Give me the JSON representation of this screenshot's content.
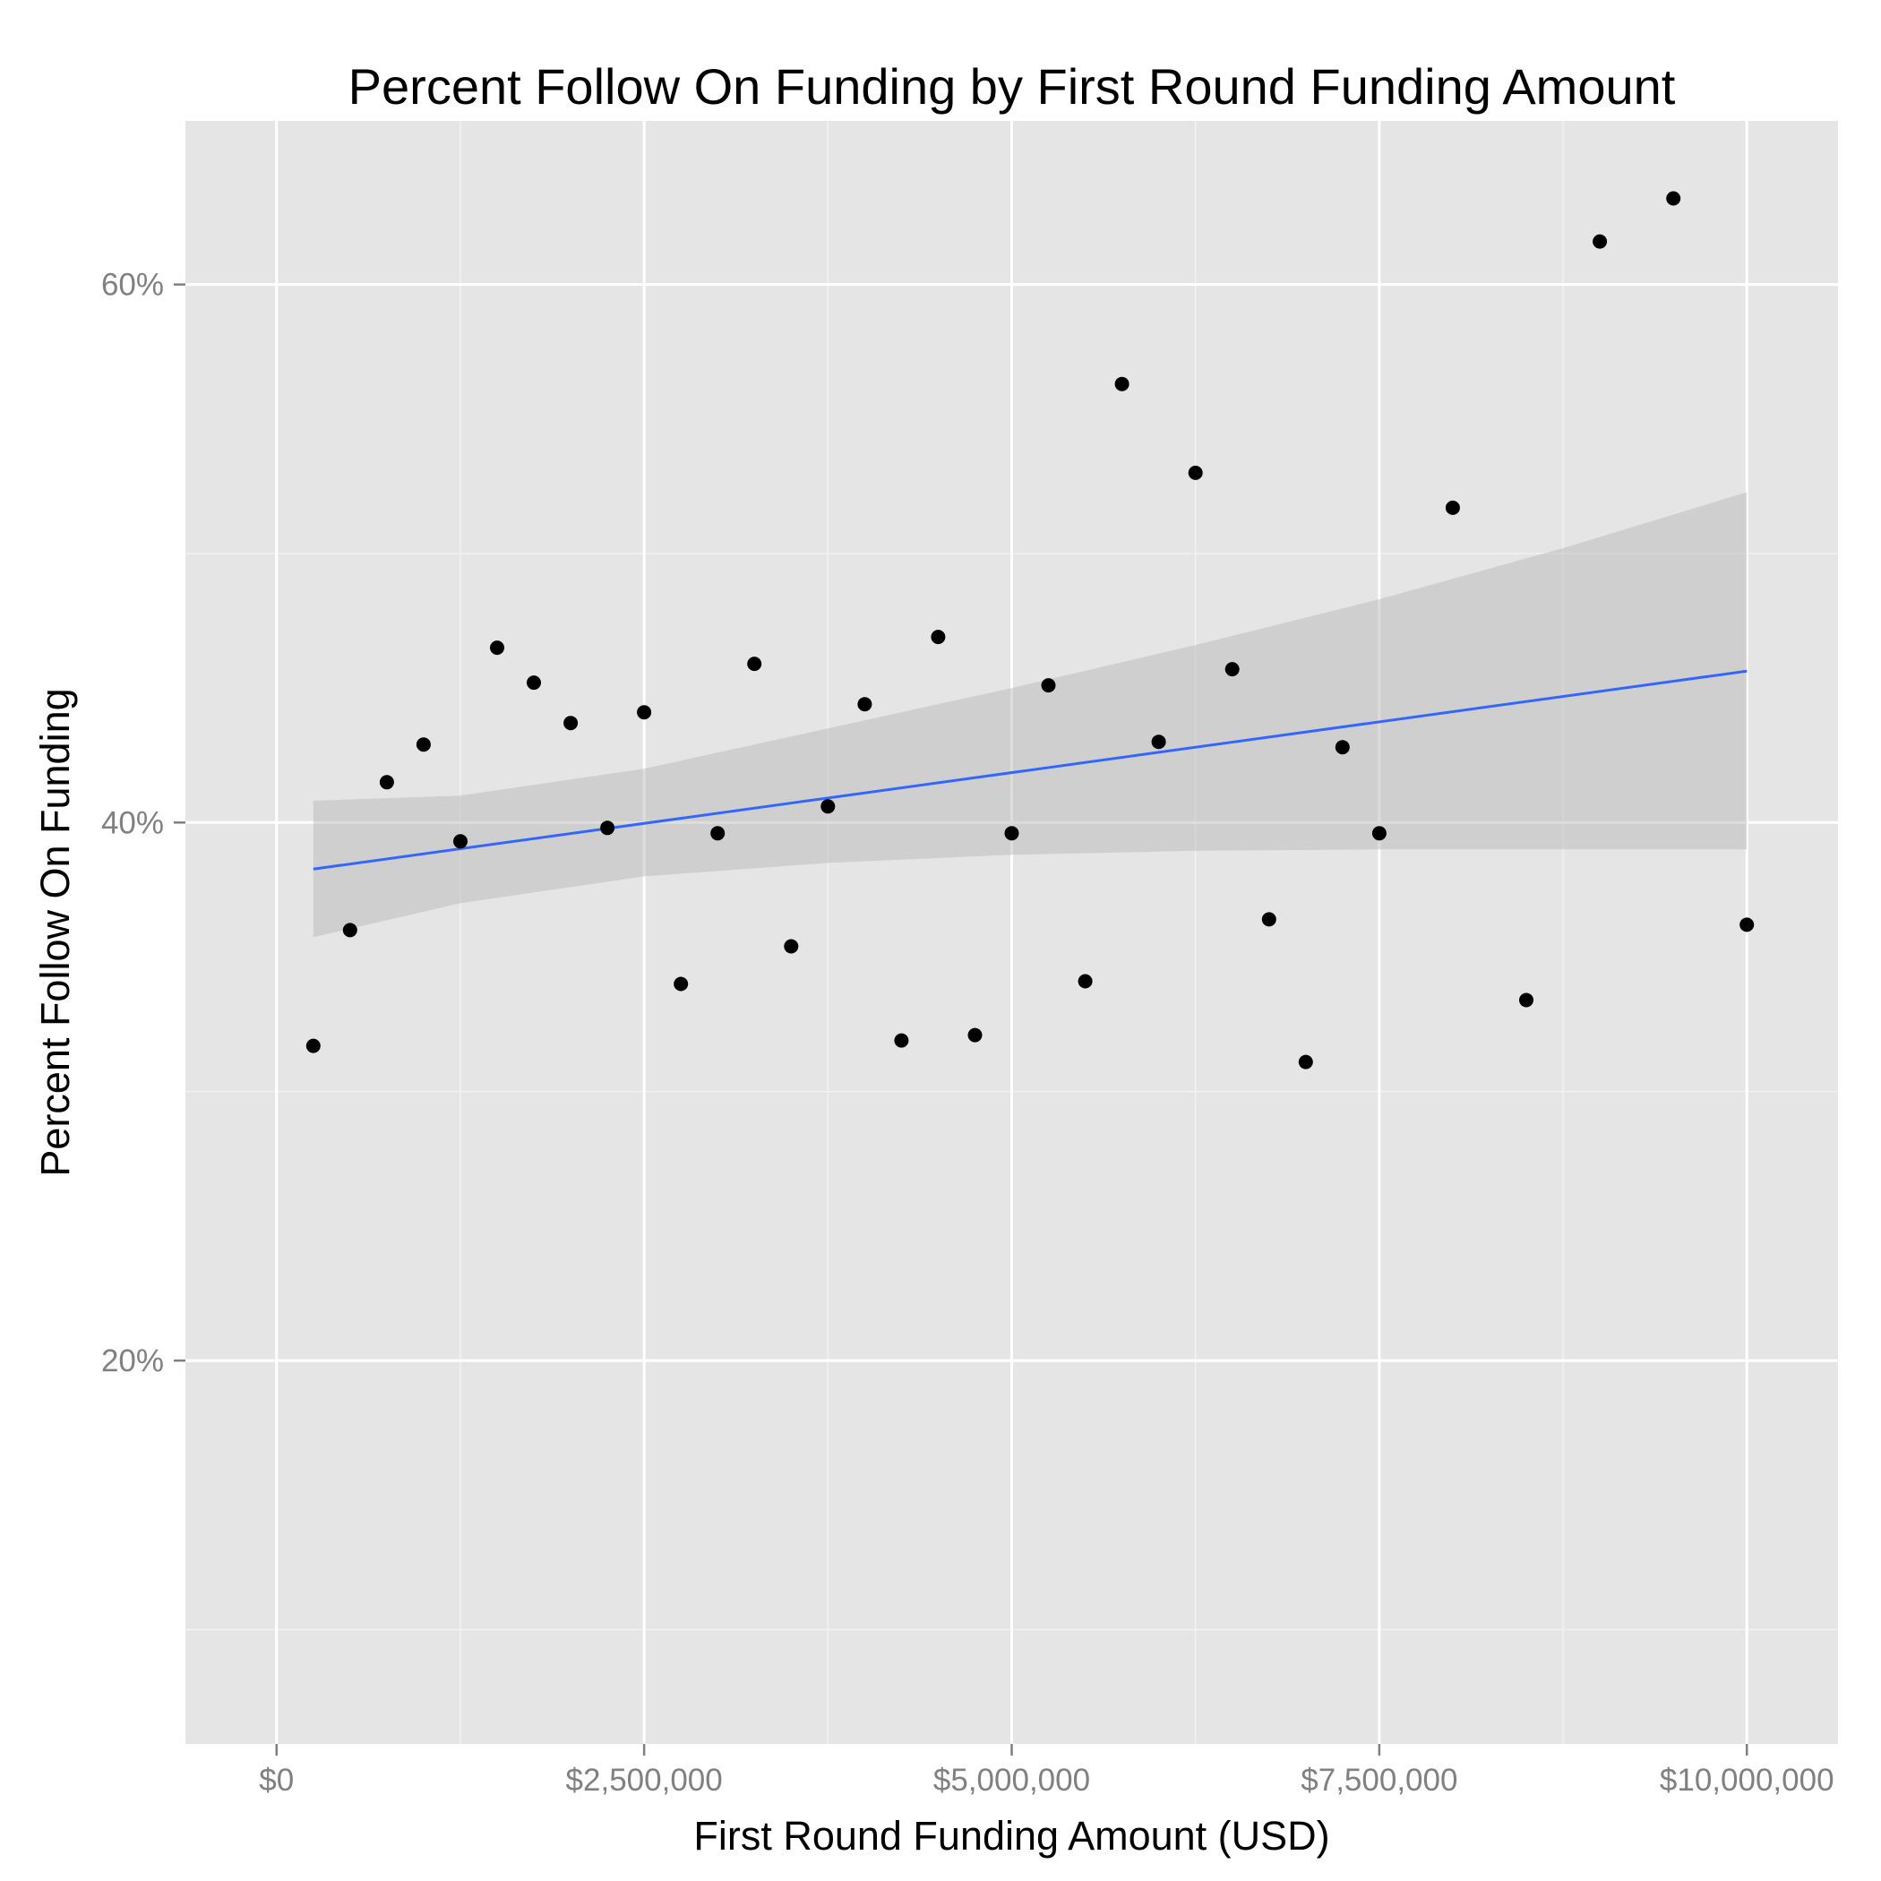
{
  "chart_data": {
    "type": "scatter",
    "title": "Percent Follow On Funding by First Round Funding Amount",
    "xlabel": "First Round Funding Amount (USD)",
    "ylabel": "Percent Follow On Funding",
    "xlim": [
      -620000,
      10620000
    ],
    "ylim": [
      0.0575,
      0.6608
    ],
    "x_ticks": [
      {
        "value": 0,
        "label": "$0"
      },
      {
        "value": 2500000,
        "label": "$2,500,000"
      },
      {
        "value": 5000000,
        "label": "$5,000,000"
      },
      {
        "value": 7500000,
        "label": "$7,500,000"
      },
      {
        "value": 10000000,
        "label": "$10,000,000"
      }
    ],
    "x_minor_ticks": [
      1250000,
      3750000,
      6250000,
      8750000
    ],
    "y_ticks": [
      {
        "value": 0.2,
        "label": "20%"
      },
      {
        "value": 0.4,
        "label": "40%"
      },
      {
        "value": 0.6,
        "label": "60%"
      }
    ],
    "y_minor_ticks": [
      0.1,
      0.3,
      0.5
    ],
    "grid": true,
    "colors": {
      "panel_background": "#e5e5e5",
      "grid_major": "#ffffff",
      "grid_minor": "#f2f2f2",
      "points": "#000000",
      "fit_line": "#3366ff",
      "confidence_band": "#b3b3b3"
    },
    "series": [
      {
        "values": [
          {
            "x": 250000,
            "y": 0.317
          },
          {
            "x": 500000,
            "y": 0.36
          },
          {
            "x": 750000,
            "y": 0.415
          },
          {
            "x": 1000000,
            "y": 0.429
          },
          {
            "x": 1250000,
            "y": 0.393
          },
          {
            "x": 1500000,
            "y": 0.465
          },
          {
            "x": 1750000,
            "y": 0.452
          },
          {
            "x": 2000000,
            "y": 0.437
          },
          {
            "x": 2250000,
            "y": 0.398
          },
          {
            "x": 2500000,
            "y": 0.441
          },
          {
            "x": 2750000,
            "y": 0.34
          },
          {
            "x": 3000000,
            "y": 0.396
          },
          {
            "x": 3250000,
            "y": 0.459
          },
          {
            "x": 3500000,
            "y": 0.354
          },
          {
            "x": 3750000,
            "y": 0.406
          },
          {
            "x": 4000000,
            "y": 0.444
          },
          {
            "x": 4250000,
            "y": 0.319
          },
          {
            "x": 4500000,
            "y": 0.469
          },
          {
            "x": 4750000,
            "y": 0.321
          },
          {
            "x": 5000000,
            "y": 0.396
          },
          {
            "x": 5250000,
            "y": 0.451
          },
          {
            "x": 5500000,
            "y": 0.341
          },
          {
            "x": 5750000,
            "y": 0.563
          },
          {
            "x": 6000000,
            "y": 0.43
          },
          {
            "x": 6250000,
            "y": 0.53
          },
          {
            "x": 6500000,
            "y": 0.457
          },
          {
            "x": 6750000,
            "y": 0.364
          },
          {
            "x": 7000000,
            "y": 0.311
          },
          {
            "x": 7250000,
            "y": 0.428
          },
          {
            "x": 7500000,
            "y": 0.396
          },
          {
            "x": 8000000,
            "y": 0.517
          },
          {
            "x": 8500000,
            "y": 0.334
          },
          {
            "x": 9000000,
            "y": 0.616
          },
          {
            "x": 9500000,
            "y": 0.632
          },
          {
            "x": 10000000,
            "y": 0.362
          }
        ]
      }
    ],
    "fit": {
      "method": "linear regression with confidence band",
      "x": [
        250000,
        10000000
      ],
      "y": [
        0.3827,
        0.4563
      ],
      "band": [
        {
          "x": 250000,
          "lower": 0.3574,
          "upper": 0.4081
        },
        {
          "x": 1250000,
          "lower": 0.37,
          "upper": 0.41
        },
        {
          "x": 2500000,
          "lower": 0.38,
          "upper": 0.42
        },
        {
          "x": 3750000,
          "lower": 0.385,
          "upper": 0.435
        },
        {
          "x": 5000000,
          "lower": 0.388,
          "upper": 0.45
        },
        {
          "x": 6250000,
          "lower": 0.3895,
          "upper": 0.466
        },
        {
          "x": 7500000,
          "lower": 0.39,
          "upper": 0.483
        },
        {
          "x": 8750000,
          "lower": 0.39,
          "upper": 0.502
        },
        {
          "x": 10000000,
          "lower": 0.39,
          "upper": 0.5228
        }
      ]
    }
  }
}
